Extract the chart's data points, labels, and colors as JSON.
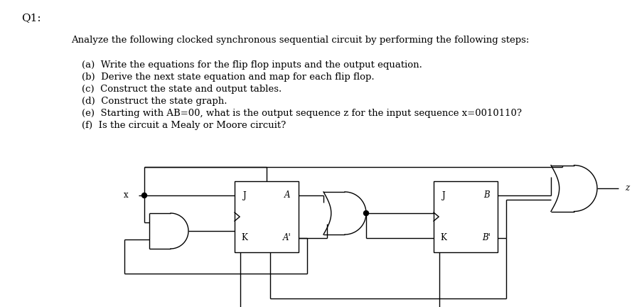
{
  "bg_color": "#ffffff",
  "text_color": "#000000",
  "q1_label": "Q1:",
  "intro_text": "Analyze the following clocked synchronous sequential circuit by performing the following steps:",
  "items": [
    "(a)  Write the equations for the flip flop inputs and the output equation.",
    "(b)  Derive the next state equation and map for each flip flop.",
    "(c)  Construct the state and output tables.",
    "(d)  Construct the state graph.",
    "(e)  Starting with AB=00, what is the output sequence z for the input sequence x=0010110?",
    "(f)  Is the circuit a Mealy or Moore circuit?"
  ],
  "font_size_main": 9.5,
  "font_size_q1": 11,
  "line_color": "#000000",
  "lw": 1.0
}
